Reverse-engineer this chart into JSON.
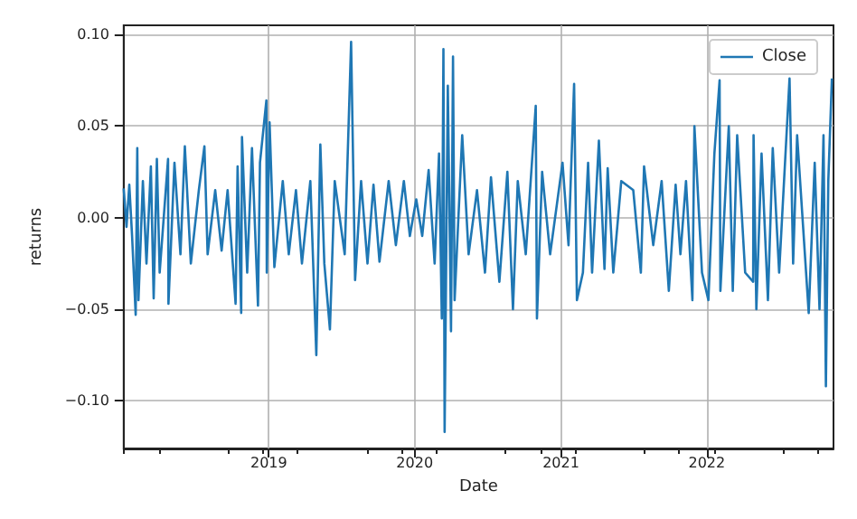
{
  "chart_data": {
    "type": "line",
    "xlabel": "Date",
    "ylabel": "returns",
    "legend": "top right",
    "grid": true,
    "line_style": "solid",
    "marker": "none",
    "xlim": [
      "2018-01-03",
      "2022-11-14"
    ],
    "xticks": [
      {
        "value": "2019-01-01",
        "label": "2019"
      },
      {
        "value": "2020-01-01",
        "label": "2020"
      },
      {
        "value": "2021-01-01",
        "label": "2021"
      },
      {
        "value": "2022-01-01",
        "label": "2022"
      }
    ],
    "ylim": [
      -0.126,
      0.105
    ],
    "yticks": [
      {
        "value": -0.1,
        "label": "−0.10"
      },
      {
        "value": -0.05,
        "label": "−0.05"
      },
      {
        "value": 0,
        "label": "0.00"
      },
      {
        "value": 0.05,
        "label": "0.05"
      },
      {
        "value": 0.1,
        "label": "0.10"
      }
    ],
    "x": [
      "2018-01-03",
      "2018-01-10",
      "2018-01-17",
      "2018-01-24",
      "2018-02-02",
      "2018-02-06",
      "2018-02-09",
      "2018-02-20",
      "2018-03-01",
      "2018-03-12",
      "2018-03-19",
      "2018-03-27",
      "2018-04-03",
      "2018-04-24",
      "2018-04-25",
      "2018-05-10",
      "2018-05-25",
      "2018-06-05",
      "2018-06-20",
      "2018-07-10",
      "2018-07-24",
      "2018-08-01",
      "2018-08-20",
      "2018-09-05",
      "2018-09-20",
      "2018-10-10",
      "2018-10-15",
      "2018-10-24",
      "2018-10-26",
      "2018-11-08",
      "2018-11-20",
      "2018-12-05",
      "2018-12-10",
      "2018-12-26",
      "2018-12-27",
      "2019-01-03",
      "2019-01-15",
      "2019-02-05",
      "2019-02-20",
      "2019-03-10",
      "2019-03-25",
      "2019-04-15",
      "2019-04-30",
      "2019-05-10",
      "2019-05-20",
      "2019-06-03",
      "2019-06-15",
      "2019-07-10",
      "2019-07-26",
      "2019-08-05",
      "2019-08-20",
      "2019-09-05",
      "2019-09-20",
      "2019-10-05",
      "2019-10-28",
      "2019-11-15",
      "2019-12-05",
      "2019-12-20",
      "2020-01-05",
      "2020-01-20",
      "2020-02-05",
      "2020-02-20",
      "2020-03-02",
      "2020-03-09",
      "2020-03-13",
      "2020-03-16",
      "2020-03-24",
      "2020-04-01",
      "2020-04-06",
      "2020-04-10",
      "2020-04-29",
      "2020-05-15",
      "2020-06-05",
      "2020-06-25",
      "2020-07-10",
      "2020-07-31",
      "2020-08-20",
      "2020-09-03",
      "2020-09-15",
      "2020-10-05",
      "2020-10-30",
      "2020-11-02",
      "2020-11-15",
      "2020-12-05",
      "2021-01-05",
      "2021-01-20",
      "2021-02-03",
      "2021-02-10",
      "2021-02-25",
      "2021-03-10",
      "2021-03-20",
      "2021-04-06",
      "2021-04-20",
      "2021-04-28",
      "2021-05-12",
      "2021-06-01",
      "2021-07-01",
      "2021-07-20",
      "2021-07-28",
      "2021-08-20",
      "2021-09-10",
      "2021-09-28",
      "2021-10-15",
      "2021-10-27",
      "2021-11-10",
      "2021-11-26",
      "2021-12-01",
      "2021-12-20",
      "2022-01-05",
      "2022-01-20",
      "2022-02-02",
      "2022-02-04",
      "2022-02-25",
      "2022-03-07",
      "2022-03-18",
      "2022-04-07",
      "2022-04-27",
      "2022-04-28",
      "2022-05-05",
      "2022-05-18",
      "2022-06-03",
      "2022-06-15",
      "2022-07-01",
      "2022-07-27",
      "2022-08-05",
      "2022-08-15",
      "2022-09-13",
      "2022-09-28",
      "2022-10-10",
      "2022-10-20",
      "2022-10-26",
      "2022-11-01",
      "2022-11-10"
    ],
    "series": [
      {
        "name": "Close",
        "color": "#1f77b4",
        "values": [
          0.016,
          -0.005,
          0.018,
          -0.01,
          -0.053,
          0.038,
          -0.045,
          0.02,
          -0.025,
          0.028,
          -0.044,
          0.032,
          -0.03,
          0.032,
          -0.047,
          0.03,
          -0.02,
          0.039,
          -0.025,
          0.015,
          0.039,
          -0.02,
          0.015,
          -0.018,
          0.015,
          -0.047,
          0.028,
          -0.052,
          0.044,
          -0.03,
          0.038,
          -0.048,
          0.03,
          0.064,
          -0.03,
          0.052,
          -0.027,
          0.02,
          -0.02,
          0.015,
          -0.025,
          0.02,
          -0.075,
          0.04,
          -0.025,
          -0.061,
          0.02,
          -0.02,
          0.096,
          -0.034,
          0.02,
          -0.025,
          0.018,
          -0.024,
          0.02,
          -0.015,
          0.02,
          -0.01,
          0.01,
          -0.01,
          0.026,
          -0.025,
          0.035,
          -0.055,
          0.092,
          -0.117,
          0.072,
          -0.062,
          0.088,
          -0.045,
          0.045,
          -0.02,
          0.015,
          -0.03,
          0.022,
          -0.035,
          0.025,
          -0.05,
          0.02,
          -0.02,
          0.061,
          -0.055,
          0.025,
          -0.02,
          0.03,
          -0.015,
          0.073,
          -0.045,
          -0.03,
          0.03,
          -0.03,
          0.042,
          -0.028,
          0.027,
          -0.03,
          0.02,
          0.015,
          -0.03,
          0.028,
          -0.015,
          0.02,
          -0.04,
          0.018,
          -0.02,
          0.02,
          -0.045,
          0.05,
          -0.03,
          -0.045,
          0.035,
          0.075,
          -0.04,
          0.05,
          -0.04,
          0.045,
          -0.03,
          -0.035,
          0.045,
          -0.05,
          0.035,
          -0.045,
          0.038,
          -0.03,
          0.076,
          -0.025,
          0.045,
          -0.052,
          0.03,
          -0.05,
          0.045,
          -0.092,
          0.02,
          0.076
        ]
      }
    ]
  }
}
